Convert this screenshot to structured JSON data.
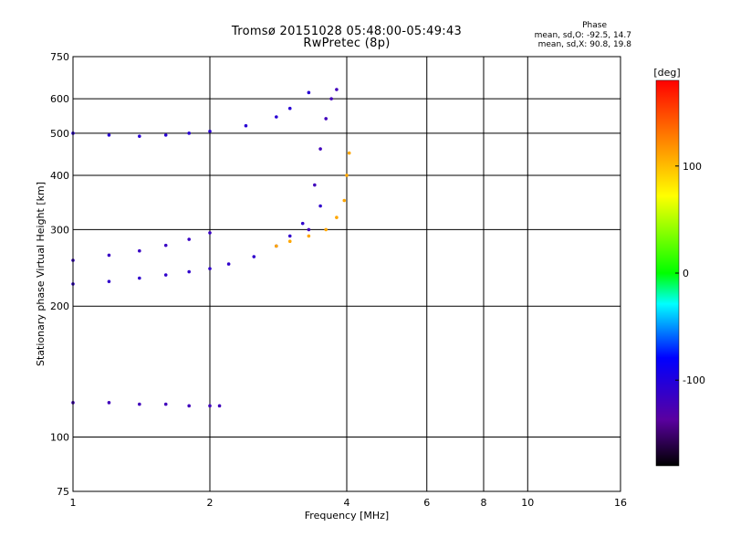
{
  "chart_data": {
    "type": "scatter",
    "title": "Tromsø 20151028 05:48:00-05:49:43",
    "subtitle": "RwPretec (8p)",
    "xlabel": "Frequency [MHz]",
    "ylabel": "Stationary phase Virtual Height [km]",
    "x_scale": "log",
    "y_scale": "log",
    "xlim": [
      1,
      16
    ],
    "ylim": [
      75,
      750
    ],
    "x_ticks": [
      1,
      2,
      4,
      6,
      8,
      10,
      16
    ],
    "y_ticks": [
      75,
      100,
      200,
      300,
      400,
      500,
      600,
      750
    ],
    "grid": true,
    "colorbar": {
      "label": "[deg]",
      "range": [
        -180,
        180
      ],
      "ticks": [
        100,
        0,
        -100
      ]
    },
    "stats": {
      "heading": "Phase",
      "line_o": "mean, sd,O: -92.5, 14.7",
      "line_x": "mean, sd,X:  90.8, 19.8"
    },
    "traces": [
      {
        "name": "",
        "points": [
          [
            1.0,
            225
          ],
          [
            1.2,
            228
          ],
          [
            1.4,
            232
          ],
          [
            1.6,
            236
          ],
          [
            1.8,
            240
          ],
          [
            2.0,
            244
          ],
          [
            2.2,
            250
          ],
          [
            2.5,
            260
          ],
          [
            2.8,
            275
          ],
          [
            3.0,
            290
          ],
          [
            3.2,
            310
          ],
          [
            3.5,
            340
          ]
        ],
        "phase": -110
      },
      {
        "name": "",
        "points": [
          [
            1.0,
            255
          ],
          [
            1.2,
            262
          ],
          [
            1.4,
            268
          ],
          [
            1.6,
            276
          ],
          [
            1.8,
            285
          ],
          [
            2.0,
            295
          ]
        ],
        "phase": -115
      },
      {
        "name": "",
        "points": [
          [
            1.0,
            500
          ],
          [
            1.2,
            495
          ],
          [
            1.4,
            492
          ],
          [
            1.6,
            495
          ],
          [
            1.8,
            500
          ],
          [
            2.0,
            505
          ],
          [
            2.4,
            520
          ],
          [
            2.8,
            545
          ],
          [
            3.0,
            570
          ],
          [
            3.3,
            620
          ]
        ],
        "phase": -105
      },
      {
        "name": "",
        "points": [
          [
            1.0,
            120
          ],
          [
            1.2,
            120
          ],
          [
            1.4,
            119
          ],
          [
            1.6,
            119
          ],
          [
            1.8,
            118
          ],
          [
            2.0,
            118
          ],
          [
            2.1,
            118
          ]
        ],
        "phase": -120
      },
      {
        "name": "",
        "points": [
          [
            2.8,
            275
          ],
          [
            3.0,
            282
          ],
          [
            3.3,
            290
          ],
          [
            3.6,
            300
          ],
          [
            3.8,
            320
          ],
          [
            3.95,
            350
          ],
          [
            4.0,
            400
          ],
          [
            4.05,
            450
          ]
        ],
        "phase": 110
      },
      {
        "name": "",
        "points": [
          [
            3.3,
            300
          ],
          [
            3.4,
            380
          ],
          [
            3.5,
            460
          ],
          [
            3.6,
            540
          ],
          [
            3.7,
            600
          ],
          [
            3.8,
            630
          ]
        ],
        "phase": -120
      }
    ]
  }
}
